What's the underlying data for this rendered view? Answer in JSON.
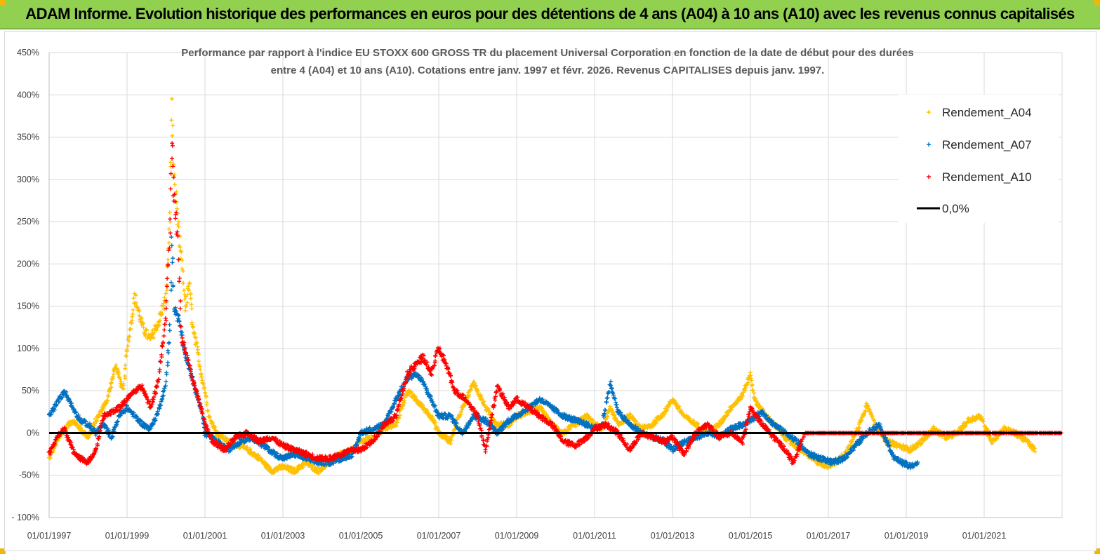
{
  "header": {
    "title": "ADAM Informe. Evolution historique des performances en euros pour des détentions de 4 ans (A04) à 10 ans (A10) avec les revenus connus capitalisés"
  },
  "colors": {
    "header_bg": "#92d050",
    "a04": "#ffc000",
    "a07": "#0070c0",
    "a10": "#ff0000",
    "zero": "#000000",
    "grid": "#d9d9d9"
  },
  "chart_data": {
    "type": "scatter",
    "title_lines": [
      "Performance par rapport à l'indice EU STOXX 600 GROSS TR  du placement Universal Corporation en fonction de la date de début pour des durées",
      "entre 4 (A04) et 10 ans (A10). Cotations entre janv. 1997 et févr. 2026. Revenus CAPITALISES depuis janv. 1997."
    ],
    "xlabel": "",
    "ylabel": "",
    "xlim": [
      1997.0,
      2023.0
    ],
    "ylim": [
      -100,
      450
    ],
    "y_ticks": [
      -100,
      -50,
      0,
      50,
      100,
      150,
      200,
      250,
      300,
      350,
      400,
      450
    ],
    "y_tick_labels": [
      "- 100%",
      "-50%",
      "0%",
      "50%",
      "100%",
      "150%",
      "200%",
      "250%",
      "300%",
      "350%",
      "400%",
      "450%"
    ],
    "x_ticks": [
      1997.0,
      1999.0,
      2001.0,
      2003.0,
      2005.0,
      2007.0,
      2009.0,
      2011.0,
      2013.0,
      2015.0,
      2017.0,
      2019.0,
      2021.0
    ],
    "x_tick_labels": [
      "01/01/1997",
      "01/01/1999",
      "01/01/2001",
      "01/01/2003",
      "01/01/2005",
      "01/01/2007",
      "01/01/2009",
      "01/01/2011",
      "01/01/2013",
      "01/01/2015",
      "01/01/2017",
      "01/01/2019",
      "01/01/2021"
    ],
    "grid": true,
    "legend_position": "top-right",
    "series": [
      {
        "name": "Rendement_A04",
        "color": "#ffc000",
        "marker": "+",
        "points": [
          [
            1997.0,
            -30
          ],
          [
            1997.2,
            -10
          ],
          [
            1997.4,
            5
          ],
          [
            1997.6,
            15
          ],
          [
            1997.8,
            5
          ],
          [
            1998.0,
            -5
          ],
          [
            1998.2,
            15
          ],
          [
            1998.5,
            40
          ],
          [
            1998.7,
            80
          ],
          [
            1998.9,
            50
          ],
          [
            1999.0,
            100
          ],
          [
            1999.2,
            160
          ],
          [
            1999.4,
            125
          ],
          [
            1999.6,
            110
          ],
          [
            1999.8,
            130
          ],
          [
            2000.0,
            160
          ],
          [
            2000.1,
            250
          ],
          [
            2000.15,
            390
          ],
          [
            2000.2,
            300
          ],
          [
            2000.3,
            250
          ],
          [
            2000.4,
            200
          ],
          [
            2000.5,
            150
          ],
          [
            2000.6,
            175
          ],
          [
            2000.7,
            120
          ],
          [
            2000.8,
            100
          ],
          [
            2000.9,
            70
          ],
          [
            2001.0,
            50
          ],
          [
            2001.1,
            20
          ],
          [
            2001.3,
            0
          ],
          [
            2001.6,
            -10
          ],
          [
            2001.9,
            -15
          ],
          [
            2002.1,
            -20
          ],
          [
            2002.4,
            -30
          ],
          [
            2002.7,
            -45
          ],
          [
            2003.0,
            -40
          ],
          [
            2003.3,
            -45
          ],
          [
            2003.6,
            -35
          ],
          [
            2003.9,
            -45
          ],
          [
            2004.2,
            -35
          ],
          [
            2004.5,
            -25
          ],
          [
            2004.8,
            -20
          ],
          [
            2005.0,
            -10
          ],
          [
            2005.3,
            -5
          ],
          [
            2005.6,
            5
          ],
          [
            2005.9,
            10
          ],
          [
            2006.2,
            50
          ],
          [
            2006.4,
            40
          ],
          [
            2006.6,
            30
          ],
          [
            2006.8,
            20
          ],
          [
            2007.0,
            0
          ],
          [
            2007.3,
            -10
          ],
          [
            2007.6,
            30
          ],
          [
            2007.9,
            60
          ],
          [
            2008.2,
            30
          ],
          [
            2008.5,
            10
          ],
          [
            2008.8,
            10
          ],
          [
            2009.0,
            20
          ],
          [
            2009.3,
            25
          ],
          [
            2009.6,
            30
          ],
          [
            2009.9,
            10
          ],
          [
            2010.2,
            0
          ],
          [
            2010.5,
            10
          ],
          [
            2010.8,
            20
          ],
          [
            2011.0,
            10
          ],
          [
            2011.2,
            5
          ],
          [
            2011.4,
            30
          ],
          [
            2011.6,
            10
          ],
          [
            2011.9,
            20
          ],
          [
            2012.2,
            5
          ],
          [
            2012.5,
            10
          ],
          [
            2012.8,
            25
          ],
          [
            2013.0,
            40
          ],
          [
            2013.3,
            20
          ],
          [
            2013.6,
            10
          ],
          [
            2013.9,
            0
          ],
          [
            2014.2,
            10
          ],
          [
            2014.5,
            30
          ],
          [
            2014.8,
            45
          ],
          [
            2015.0,
            70
          ],
          [
            2015.1,
            40
          ],
          [
            2015.4,
            20
          ],
          [
            2015.7,
            5
          ],
          [
            2016.0,
            -10
          ],
          [
            2016.3,
            -20
          ],
          [
            2016.6,
            -30
          ],
          [
            2016.9,
            -40
          ],
          [
            2017.2,
            -35
          ],
          [
            2017.5,
            -20
          ],
          [
            2017.8,
            10
          ],
          [
            2018.0,
            35
          ],
          [
            2018.2,
            10
          ],
          [
            2018.5,
            -10
          ],
          [
            2018.8,
            -15
          ],
          [
            2019.1,
            -20
          ],
          [
            2019.4,
            -10
          ],
          [
            2019.7,
            5
          ],
          [
            2020.0,
            -5
          ],
          [
            2020.3,
            0
          ],
          [
            2020.6,
            15
          ],
          [
            2020.9,
            20
          ],
          [
            2021.2,
            -10
          ],
          [
            2021.5,
            5
          ],
          [
            2021.8,
            0
          ],
          [
            2022.1,
            -10
          ],
          [
            2022.3,
            -20
          ]
        ]
      },
      {
        "name": "Rendement_A07",
        "color": "#0070c0",
        "marker": "+",
        "points": [
          [
            1997.0,
            20
          ],
          [
            1997.2,
            35
          ],
          [
            1997.4,
            50
          ],
          [
            1997.6,
            30
          ],
          [
            1997.8,
            15
          ],
          [
            1998.0,
            10
          ],
          [
            1998.2,
            0
          ],
          [
            1998.4,
            10
          ],
          [
            1998.6,
            -5
          ],
          [
            1998.8,
            20
          ],
          [
            1999.0,
            30
          ],
          [
            1999.2,
            20
          ],
          [
            1999.4,
            10
          ],
          [
            1999.6,
            5
          ],
          [
            1999.8,
            25
          ],
          [
            2000.0,
            60
          ],
          [
            2000.1,
            120
          ],
          [
            2000.15,
            240
          ],
          [
            2000.2,
            150
          ],
          [
            2000.35,
            130
          ],
          [
            2000.5,
            90
          ],
          [
            2000.7,
            60
          ],
          [
            2000.9,
            30
          ],
          [
            2001.0,
            0
          ],
          [
            2001.3,
            -10
          ],
          [
            2001.6,
            -20
          ],
          [
            2001.9,
            -10
          ],
          [
            2002.2,
            -5
          ],
          [
            2002.5,
            -15
          ],
          [
            2002.8,
            -25
          ],
          [
            2003.0,
            -30
          ],
          [
            2003.3,
            -25
          ],
          [
            2003.6,
            -30
          ],
          [
            2003.9,
            -35
          ],
          [
            2004.2,
            -35
          ],
          [
            2004.5,
            -30
          ],
          [
            2004.8,
            -25
          ],
          [
            2005.0,
            0
          ],
          [
            2005.3,
            5
          ],
          [
            2005.6,
            10
          ],
          [
            2005.9,
            40
          ],
          [
            2006.2,
            65
          ],
          [
            2006.4,
            70
          ],
          [
            2006.6,
            60
          ],
          [
            2006.8,
            40
          ],
          [
            2007.0,
            20
          ],
          [
            2007.3,
            20
          ],
          [
            2007.6,
            0
          ],
          [
            2007.9,
            20
          ],
          [
            2008.2,
            15
          ],
          [
            2008.5,
            0
          ],
          [
            2008.8,
            15
          ],
          [
            2009.0,
            20
          ],
          [
            2009.3,
            30
          ],
          [
            2009.6,
            40
          ],
          [
            2009.9,
            30
          ],
          [
            2010.2,
            20
          ],
          [
            2010.5,
            15
          ],
          [
            2010.8,
            10
          ],
          [
            2011.0,
            5
          ],
          [
            2011.2,
            10
          ],
          [
            2011.4,
            60
          ],
          [
            2011.6,
            25
          ],
          [
            2011.9,
            10
          ],
          [
            2012.2,
            0
          ],
          [
            2012.5,
            -5
          ],
          [
            2012.8,
            -10
          ],
          [
            2013.0,
            -20
          ],
          [
            2013.3,
            -10
          ],
          [
            2013.6,
            -5
          ],
          [
            2013.9,
            0
          ],
          [
            2014.2,
            -5
          ],
          [
            2014.5,
            5
          ],
          [
            2014.8,
            10
          ],
          [
            2015.0,
            15
          ],
          [
            2015.3,
            25
          ],
          [
            2015.6,
            10
          ],
          [
            2015.9,
            0
          ],
          [
            2016.2,
            -10
          ],
          [
            2016.5,
            -25
          ],
          [
            2016.8,
            -30
          ],
          [
            2017.1,
            -35
          ],
          [
            2017.4,
            -30
          ],
          [
            2017.7,
            -15
          ],
          [
            2018.0,
            0
          ],
          [
            2018.3,
            10
          ],
          [
            2018.5,
            -10
          ],
          [
            2018.7,
            -30
          ],
          [
            2018.9,
            -35
          ],
          [
            2019.1,
            -40
          ],
          [
            2019.3,
            -35
          ]
        ]
      },
      {
        "name": "Rendement_A10",
        "color": "#ff0000",
        "marker": "+",
        "points": [
          [
            1997.0,
            -25
          ],
          [
            1997.2,
            -5
          ],
          [
            1997.4,
            5
          ],
          [
            1997.6,
            -20
          ],
          [
            1997.8,
            -30
          ],
          [
            1998.0,
            -35
          ],
          [
            1998.2,
            -20
          ],
          [
            1998.4,
            20
          ],
          [
            1998.6,
            25
          ],
          [
            1998.8,
            30
          ],
          [
            1999.0,
            40
          ],
          [
            1999.2,
            50
          ],
          [
            1999.4,
            55
          ],
          [
            1999.6,
            30
          ],
          [
            1999.8,
            60
          ],
          [
            2000.0,
            140
          ],
          [
            2000.1,
            240
          ],
          [
            2000.15,
            350
          ],
          [
            2000.2,
            280
          ],
          [
            2000.3,
            230
          ],
          [
            2000.4,
            110
          ],
          [
            2000.55,
            90
          ],
          [
            2000.7,
            60
          ],
          [
            2000.9,
            30
          ],
          [
            2001.0,
            10
          ],
          [
            2001.2,
            -10
          ],
          [
            2001.5,
            -20
          ],
          [
            2001.8,
            -5
          ],
          [
            2002.1,
            0
          ],
          [
            2002.4,
            -10
          ],
          [
            2002.7,
            -5
          ],
          [
            2003.0,
            -15
          ],
          [
            2003.3,
            -20
          ],
          [
            2003.6,
            -25
          ],
          [
            2003.9,
            -30
          ],
          [
            2004.2,
            -30
          ],
          [
            2004.5,
            -25
          ],
          [
            2004.8,
            -20
          ],
          [
            2005.0,
            -20
          ],
          [
            2005.3,
            -10
          ],
          [
            2005.6,
            10
          ],
          [
            2005.9,
            20
          ],
          [
            2006.2,
            70
          ],
          [
            2006.4,
            80
          ],
          [
            2006.6,
            90
          ],
          [
            2006.8,
            70
          ],
          [
            2007.0,
            100
          ],
          [
            2007.2,
            80
          ],
          [
            2007.4,
            50
          ],
          [
            2007.7,
            40
          ],
          [
            2008.0,
            20
          ],
          [
            2008.2,
            -20
          ],
          [
            2008.5,
            55
          ],
          [
            2008.8,
            30
          ],
          [
            2009.0,
            40
          ],
          [
            2009.3,
            30
          ],
          [
            2009.6,
            20
          ],
          [
            2009.9,
            10
          ],
          [
            2010.2,
            -10
          ],
          [
            2010.5,
            -15
          ],
          [
            2010.8,
            -5
          ],
          [
            2011.0,
            5
          ],
          [
            2011.3,
            10
          ],
          [
            2011.6,
            0
          ],
          [
            2011.9,
            -20
          ],
          [
            2012.2,
            0
          ],
          [
            2012.5,
            -5
          ],
          [
            2012.8,
            -10
          ],
          [
            2013.0,
            -5
          ],
          [
            2013.3,
            -25
          ],
          [
            2013.6,
            0
          ],
          [
            2013.9,
            10
          ],
          [
            2014.2,
            -5
          ],
          [
            2014.5,
            0
          ],
          [
            2014.8,
            -10
          ],
          [
            2015.0,
            30
          ],
          [
            2015.3,
            10
          ],
          [
            2015.6,
            -5
          ],
          [
            2015.9,
            -20
          ],
          [
            2016.1,
            -35
          ],
          [
            2016.4,
            0
          ],
          [
            2017.0,
            0
          ],
          [
            2018.0,
            0
          ],
          [
            2019.0,
            0
          ],
          [
            2020.0,
            0
          ],
          [
            2021.0,
            0
          ],
          [
            2022.0,
            0
          ],
          [
            2023.0,
            0
          ]
        ]
      }
    ],
    "reference_line": {
      "name": "0,0%",
      "value": 0,
      "color": "#000000"
    }
  }
}
